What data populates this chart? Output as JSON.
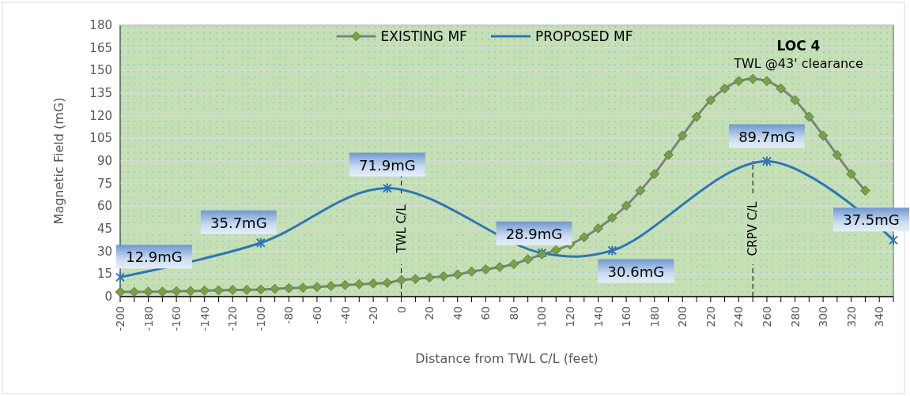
{
  "chart_data": {
    "type": "line",
    "xlabel": "Distance from TWL C/L (feet)",
    "ylabel": "Magnetic Field (mG)",
    "xlim": [
      -200,
      350
    ],
    "xticks": [
      -200,
      {
        "value": -190,
        "label": null
      },
      -180,
      {
        "value": -170,
        "label": null
      },
      -160,
      {
        "value": -150,
        "label": null
      },
      -140,
      {
        "value": -130,
        "label": null
      },
      -120,
      {
        "value": -110,
        "label": null
      },
      -100,
      {
        "value": -90,
        "label": null
      },
      -80,
      {
        "value": -70,
        "label": null
      },
      -60,
      {
        "value": -50,
        "label": null
      },
      -40,
      {
        "value": -30,
        "label": null
      },
      -20,
      {
        "value": -10,
        "label": null
      },
      0,
      {
        "value": 10,
        "label": null
      },
      20,
      {
        "value": 30,
        "label": null
      },
      40,
      {
        "value": 50,
        "label": null
      },
      60,
      {
        "value": 70,
        "label": null
      },
      80,
      {
        "value": 90,
        "label": null
      },
      100,
      {
        "value": 110,
        "label": null
      },
      120,
      {
        "value": 130,
        "label": null
      },
      140,
      {
        "value": 150,
        "label": null
      },
      160,
      {
        "value": 170,
        "label": null
      },
      180,
      {
        "value": 190,
        "label": null
      },
      200,
      {
        "value": 210,
        "label": null
      },
      220,
      {
        "value": 230,
        "label": null
      },
      240,
      {
        "value": 250,
        "label": null
      },
      260,
      {
        "value": 270,
        "label": null
      },
      280,
      {
        "value": 290,
        "label": null
      },
      300,
      {
        "value": 310,
        "label": null
      },
      320,
      {
        "value": 330,
        "label": null
      },
      340,
      {
        "value": 350,
        "label": null
      }
    ],
    "ylim": [
      0,
      180
    ],
    "yticks": [
      0,
      15,
      30,
      45,
      60,
      75,
      90,
      105,
      120,
      135,
      150,
      165,
      180
    ],
    "grid": "y",
    "legend": "top",
    "line_style": "solid",
    "series": [
      {
        "name": "EXISTING MF",
        "color": "#808080",
        "marker": "diamond",
        "x": [
          -200,
          -190,
          -180,
          -170,
          -160,
          -150,
          -140,
          -130,
          -120,
          -110,
          -100,
          -90,
          -80,
          -70,
          -60,
          -50,
          -40,
          -30,
          -20,
          -10,
          0,
          10,
          20,
          30,
          40,
          50,
          60,
          70,
          80,
          90,
          100,
          110,
          120,
          130,
          140,
          150,
          160,
          170,
          180,
          190,
          200,
          210,
          220,
          230,
          240,
          250,
          260,
          270,
          280,
          290,
          300,
          310,
          320,
          330
        ],
        "values": [
          3.1,
          3.1,
          3.3,
          3.3,
          3.5,
          3.7,
          4,
          4.2,
          4.4,
          4.5,
          4.7,
          5.1,
          5.6,
          5.9,
          6.4,
          7,
          7.7,
          8.2,
          8.7,
          9.1,
          11,
          11.7,
          12.6,
          13.5,
          14.7,
          16.6,
          18,
          19.6,
          21.6,
          24.7,
          28,
          30.8,
          34.5,
          39.4,
          45.3,
          52.3,
          60.3,
          70.3,
          81.3,
          93.9,
          106.8,
          119.3,
          130.3,
          138,
          143,
          144.4,
          143,
          138,
          130.3,
          119.3,
          106.8,
          93.9,
          81.3,
          70.3
        ]
      },
      {
        "name": "PROPOSED MF",
        "color": "#2e75b6",
        "marker": "cross",
        "x": [
          -200,
          -100,
          -10,
          100,
          150,
          260,
          350
        ],
        "values": [
          12.9,
          35.7,
          71.9,
          28.9,
          30.6,
          89.7,
          37.5
        ],
        "value_labels": [
          "12.9mG",
          "35.7mG",
          "71.9mG",
          "28.9mG",
          "30.6mG",
          "89.7mG",
          "37.5mG"
        ]
      }
    ],
    "ref_lines": [
      {
        "axis": "x",
        "value": 0,
        "label": "TWL C/L",
        "line_style": "dashed"
      },
      {
        "axis": "x",
        "value": 250,
        "label": "CRPV C/L",
        "line_style": "dashed"
      }
    ],
    "annotations": [
      {
        "text": "LOC 4"
      },
      {
        "text": "TWL @43' clearance"
      }
    ]
  }
}
